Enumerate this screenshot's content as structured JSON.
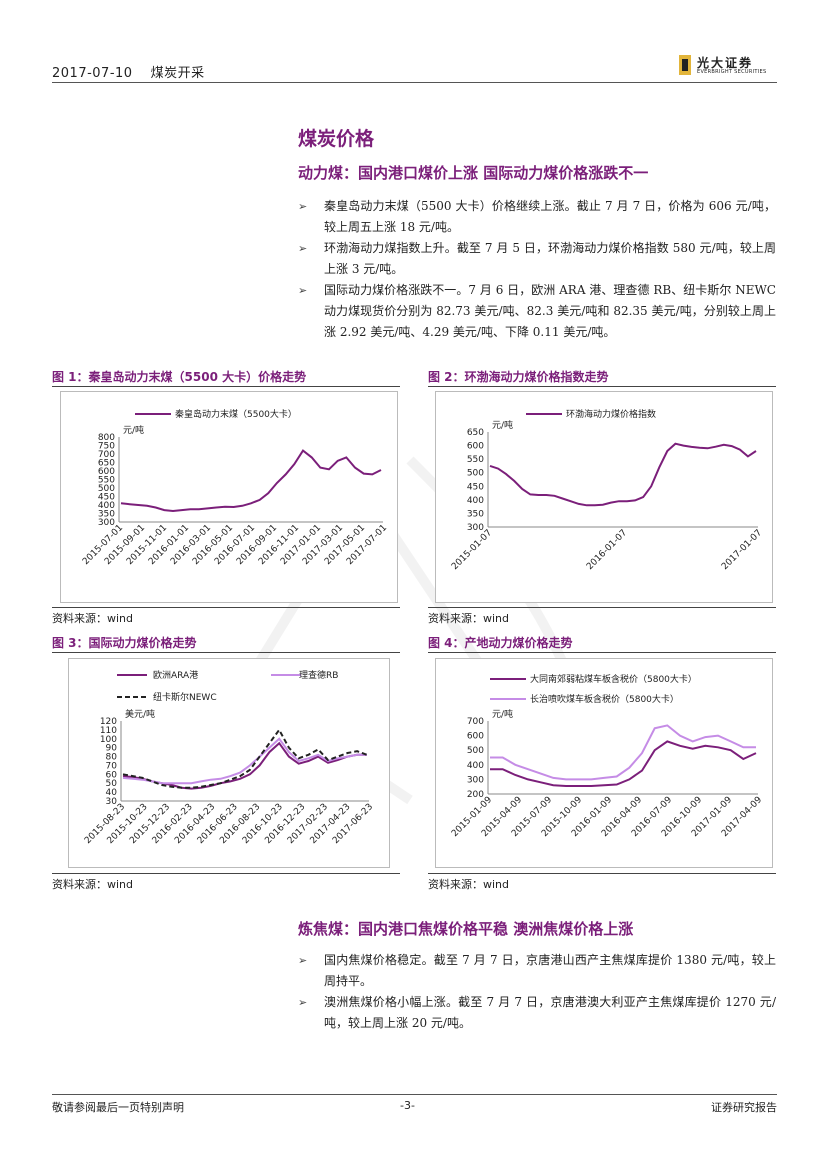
{
  "header": {
    "date": "2017-07-10",
    "industry": "煤炭开采"
  },
  "logo": {
    "cn": "光大证券",
    "en": "EVERBRIGHT SECURITIES"
  },
  "section_title": "煤炭价格",
  "subsection1": "动力煤：国内港口煤价上涨 国际动力煤价格涨跌不一",
  "bullets1": [
    "秦皇岛动力末煤（5500 大卡）价格继续上涨。截止 7 月 7 日，价格为 606 元/吨，较上周五上涨 18 元/吨。",
    "环渤海动力煤指数上升。截至 7 月 5 日，环渤海动力煤价格指数 580 元/吨，较上周上涨 3 元/吨。",
    "国际动力煤价格涨跌不一。7 月 6 日，欧洲 ARA 港、理查德 RB、纽卡斯尔 NEWC 动力煤现货价分别为 82.73 美元/吨、82.3 美元/吨和 82.35 美元/吨，分别较上周上涨 2.92 美元/吨、4.29 美元/吨、下降 0.11 美元/吨。"
  ],
  "fig1": {
    "title": "图 1：秦皇岛动力末煤（5500 大卡）价格走势",
    "source": "资料来源：wind"
  },
  "fig2": {
    "title": "图 2：环渤海动力煤价格指数走势",
    "source": "资料来源：wind"
  },
  "fig3": {
    "title": "图 3：国际动力煤价格走势",
    "source": "资料来源：wind"
  },
  "fig4": {
    "title": "图 4：产地动力煤价格走势",
    "source": "资料来源：wind"
  },
  "subsection2": "炼焦煤：国内港口焦煤价格平稳 澳洲焦煤价格上涨",
  "bullets2": [
    "国内焦煤价格稳定。截至 7 月 7 日，京唐港山西产主焦煤库提价 1380 元/吨，较上周持平。",
    "澳洲焦煤价格小幅上涨。截至 7 月 7 日，京唐港澳大利亚产主焦煤库提价 1270 元/吨，较上周上涨 20 元/吨。"
  ],
  "footer": {
    "left": "敬请参阅最后一页特别声明",
    "page": "-3-",
    "right": "证券研究报告"
  },
  "colors": {
    "accent": "#7b1f7a",
    "series_purple": "#7b1f7a",
    "series_light": "#c58ce6",
    "series_black": "#222222"
  },
  "chart_data": [
    {
      "type": "line",
      "ylabel": "元/吨",
      "ylim": [
        300,
        800
      ],
      "yticks": [
        "800",
        "750",
        "700",
        "650",
        "600",
        "550",
        "500",
        "450",
        "400",
        "350",
        "300"
      ],
      "xticks": [
        "2015-07-01",
        "2015-09-01",
        "2015-11-01",
        "2016-01-01",
        "2016-03-01",
        "2016-05-01",
        "2016-07-01",
        "2016-09-01",
        "2016-11-01",
        "2017-01-01",
        "2017-03-01",
        "2017-05-01",
        "2017-07-01"
      ],
      "series": [
        {
          "name": "秦皇岛动力末煤（5500大卡）",
          "color": "#7b1f7a",
          "values": [
            410,
            405,
            400,
            395,
            385,
            370,
            365,
            370,
            375,
            375,
            380,
            385,
            390,
            388,
            395,
            410,
            430,
            470,
            530,
            580,
            640,
            720,
            680,
            620,
            610,
            660,
            680,
            620,
            585,
            580,
            606
          ]
        }
      ]
    },
    {
      "type": "line",
      "ylabel": "元/吨",
      "ylim": [
        300,
        650
      ],
      "yticks": [
        "650",
        "600",
        "550",
        "500",
        "450",
        "400",
        "350",
        "300"
      ],
      "xticks": [
        "2015-01-07",
        "2016-01-07",
        "2017-01-07"
      ],
      "series": [
        {
          "name": "环渤海动力煤价格指数",
          "color": "#7b1f7a",
          "values": [
            525,
            515,
            495,
            470,
            440,
            420,
            418,
            418,
            415,
            405,
            395,
            385,
            380,
            380,
            382,
            390,
            395,
            395,
            398,
            410,
            450,
            520,
            580,
            607,
            600,
            595,
            592,
            590,
            596,
            603,
            598,
            585,
            560,
            580
          ]
        }
      ]
    },
    {
      "type": "line",
      "ylabel": "美元/吨",
      "ylim": [
        30,
        120
      ],
      "yticks": [
        "120",
        "110",
        "100",
        "90",
        "80",
        "70",
        "60",
        "50",
        "40",
        "30"
      ],
      "xticks": [
        "2015-08-23",
        "2015-10-23",
        "2015-12-23",
        "2016-02-23",
        "2016-04-23",
        "2016-06-23",
        "2016-08-23",
        "2016-10-23",
        "2016-12-23",
        "2017-02-23",
        "2017-04-23",
        "2017-06-23"
      ],
      "series": [
        {
          "name": "欧洲ARA港",
          "color": "#7b1f7a",
          "values": [
            58,
            57,
            55,
            52,
            50,
            48,
            45,
            44,
            45,
            47,
            50,
            52,
            55,
            60,
            70,
            85,
            95,
            80,
            72,
            75,
            80,
            73,
            76,
            80,
            82,
            82
          ]
        },
        {
          "name": "理查德RB",
          "color": "#c58ce6",
          "values": [
            56,
            55,
            54,
            52,
            50,
            50,
            50,
            50,
            52,
            54,
            55,
            58,
            62,
            70,
            80,
            90,
            100,
            85,
            75,
            78,
            82,
            75,
            78,
            80,
            82,
            82
          ]
        },
        {
          "name": "纽卡斯尔NEWC",
          "color": "#222222",
          "dashed": true,
          "values": [
            60,
            58,
            56,
            52,
            48,
            46,
            45,
            45,
            46,
            48,
            50,
            54,
            58,
            65,
            80,
            95,
            110,
            90,
            78,
            82,
            88,
            76,
            80,
            84,
            86,
            82
          ]
        }
      ]
    },
    {
      "type": "line",
      "ylabel": "元/吨",
      "ylim": [
        200,
        700
      ],
      "yticks": [
        "700",
        "600",
        "500",
        "400",
        "300",
        "200"
      ],
      "xticks": [
        "2015-01-09",
        "2015-04-09",
        "2015-07-09",
        "2015-10-09",
        "2016-01-09",
        "2016-04-09",
        "2016-07-09",
        "2016-10-09",
        "2017-01-09",
        "2017-04-09"
      ],
      "series": [
        {
          "name": "大同南郊弱粘煤车板含税价（5800大卡）",
          "color": "#7b1f7a",
          "values": [
            370,
            370,
            330,
            300,
            280,
            260,
            255,
            255,
            255,
            260,
            265,
            300,
            360,
            500,
            560,
            530,
            510,
            530,
            520,
            500,
            440,
            480
          ]
        },
        {
          "name": "长治喷吹煤车板含税价（5800大卡）",
          "color": "#c58ce6",
          "values": [
            450,
            450,
            400,
            370,
            340,
            310,
            300,
            300,
            300,
            310,
            320,
            380,
            480,
            650,
            670,
            600,
            560,
            590,
            600,
            560,
            520,
            520
          ]
        }
      ]
    }
  ]
}
